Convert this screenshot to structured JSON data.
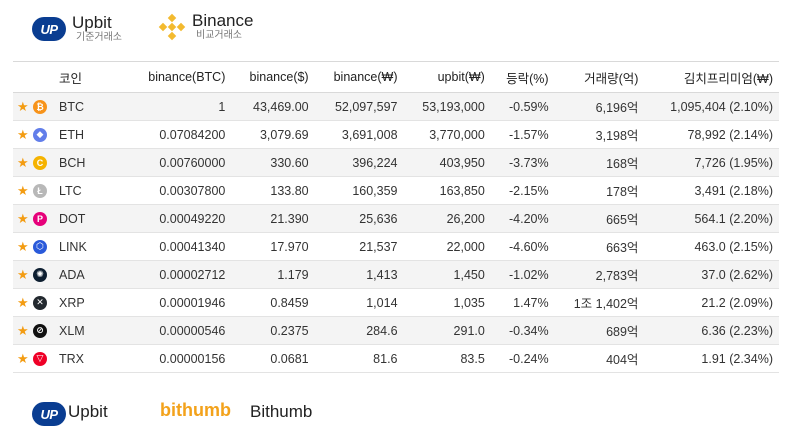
{
  "header": {
    "base_exchange": {
      "name": "Upbit",
      "sub": "기준거래소",
      "logo_text": "UP"
    },
    "compare_exchange": {
      "name": "Binance",
      "sub": "비교거래소"
    }
  },
  "table": {
    "columns": [
      "코인",
      "binance(BTC)",
      "binance($)",
      "binance(₩)",
      "upbit(₩)",
      "등락(%)",
      "거래량(억)",
      "김치프리미엄(₩)"
    ],
    "rows": [
      {
        "symbol": "BTC",
        "icon": "bitcoin-icon",
        "color": "#f7931a",
        "glyph": "₿",
        "bin_btc": "1",
        "bin_usd": "43,469.00",
        "bin_krw": "52,097,597",
        "upbit_krw": "53,193,000",
        "change": "-0.59%",
        "change_dir": "neg",
        "volume": "6,196억",
        "kimchi": "1,095,404 (2.10%)"
      },
      {
        "symbol": "ETH",
        "icon": "ethereum-icon",
        "color": "#627eea",
        "glyph": "◆",
        "bin_btc": "0.07084200",
        "bin_usd": "3,079.69",
        "bin_krw": "3,691,008",
        "upbit_krw": "3,770,000",
        "change": "-1.57%",
        "change_dir": "neg",
        "volume": "3,198억",
        "kimchi": "78,992 (2.14%)"
      },
      {
        "symbol": "BCH",
        "icon": "bitcoin-cash-icon",
        "color": "#f5b300",
        "glyph": "C",
        "bin_btc": "0.00760000",
        "bin_usd": "330.60",
        "bin_krw": "396,224",
        "upbit_krw": "403,950",
        "change": "-3.73%",
        "change_dir": "neg",
        "volume": "168억",
        "kimchi": "7,726 (1.95%)"
      },
      {
        "symbol": "LTC",
        "icon": "litecoin-icon",
        "color": "#b8b8b8",
        "glyph": "Ł",
        "bin_btc": "0.00307800",
        "bin_usd": "133.80",
        "bin_krw": "160,359",
        "upbit_krw": "163,850",
        "change": "-2.15%",
        "change_dir": "neg",
        "volume": "178억",
        "kimchi": "3,491 (2.18%)"
      },
      {
        "symbol": "DOT",
        "icon": "polkadot-icon",
        "color": "#e6007a",
        "glyph": "P",
        "bin_btc": "0.00049220",
        "bin_usd": "21.390",
        "bin_krw": "25,636",
        "upbit_krw": "26,200",
        "change": "-4.20%",
        "change_dir": "neg",
        "volume": "665억",
        "kimchi": "564.1 (2.20%)"
      },
      {
        "symbol": "LINK",
        "icon": "chainlink-icon",
        "color": "#2a5ada",
        "glyph": "⬡",
        "bin_btc": "0.00041340",
        "bin_usd": "17.970",
        "bin_krw": "21,537",
        "upbit_krw": "22,000",
        "change": "-4.60%",
        "change_dir": "neg",
        "volume": "663억",
        "kimchi": "463.0 (2.15%)"
      },
      {
        "symbol": "ADA",
        "icon": "cardano-icon",
        "color": "#0d1e30",
        "glyph": "✺",
        "bin_btc": "0.00002712",
        "bin_usd": "1.179",
        "bin_krw": "1,413",
        "upbit_krw": "1,450",
        "change": "-1.02%",
        "change_dir": "neg",
        "volume": "2,783억",
        "kimchi": "37.0 (2.62%)"
      },
      {
        "symbol": "XRP",
        "icon": "ripple-icon",
        "color": "#23292f",
        "glyph": "✕",
        "bin_btc": "0.00001946",
        "bin_usd": "0.8459",
        "bin_krw": "1,014",
        "upbit_krw": "1,035",
        "change": "1.47%",
        "change_dir": "pos",
        "volume": "1조 1,402억",
        "kimchi": "21.2 (2.09%)"
      },
      {
        "symbol": "XLM",
        "icon": "stellar-icon",
        "color": "#111111",
        "glyph": "⊘",
        "bin_btc": "0.00000546",
        "bin_usd": "0.2375",
        "bin_krw": "284.6",
        "upbit_krw": "291.0",
        "change": "-0.34%",
        "change_dir": "neg",
        "volume": "689억",
        "kimchi": "6.36 (2.23%)"
      },
      {
        "symbol": "TRX",
        "icon": "tron-icon",
        "color": "#ef0027",
        "glyph": "▽",
        "bin_btc": "0.00000156",
        "bin_usd": "0.0681",
        "bin_krw": "81.6",
        "upbit_krw": "83.5",
        "change": "-0.24%",
        "change_dir": "neg",
        "volume": "404억",
        "kimchi": "1.91 (2.34%)"
      }
    ]
  },
  "footer": {
    "base_name": "Upbit",
    "logo_text": "UP",
    "partial_brand": "bithumb",
    "compare_name": "Bithumb"
  }
}
